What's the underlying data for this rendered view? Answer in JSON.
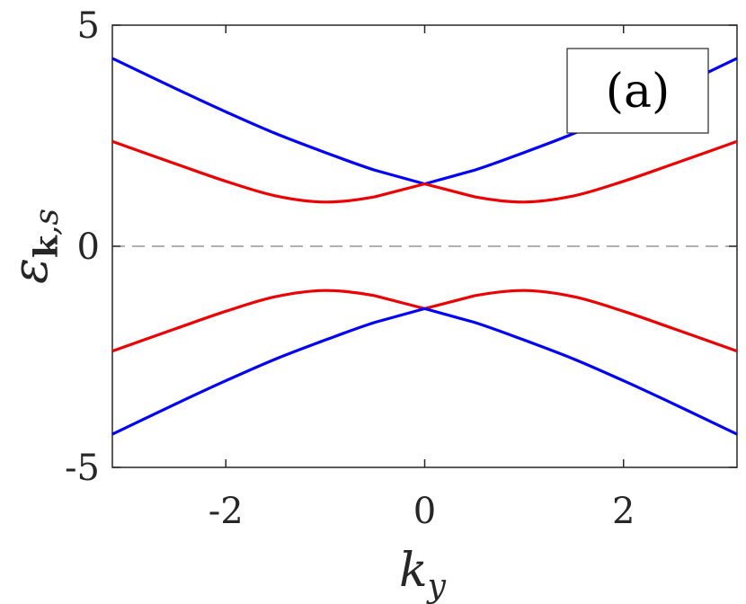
{
  "chart_data": {
    "type": "line",
    "title": "",
    "xlabel": "k_y",
    "ylabel": "ε_{k,s}",
    "xlim": [
      -3.1416,
      3.1416
    ],
    "ylim": [
      -5,
      5
    ],
    "xticks": [
      -2,
      0,
      2
    ],
    "xtick_labels": [
      "-2",
      "0",
      "2"
    ],
    "yticks": [
      -5,
      0,
      5
    ],
    "ytick_labels": [
      "-5",
      "0",
      "5"
    ],
    "grid": false,
    "panel_label": "(a)",
    "zero_line": {
      "y": 0,
      "style": "dashed",
      "color": "#808080"
    },
    "series": [
      {
        "color": "#0000ff",
        "x": [
          -3.1416,
          -2.5,
          -2.0,
          -1.5,
          -1.0,
          -0.5,
          0.0,
          0.5,
          1.0,
          1.5,
          2.0,
          2.5,
          3.1416
        ],
        "values": [
          4.25,
          3.56,
          3.04,
          2.55,
          2.12,
          1.72,
          1.41,
          1.72,
          2.12,
          2.55,
          3.04,
          3.56,
          4.25
        ]
      },
      {
        "color": "#ee0000",
        "x": [
          -3.1416,
          -2.5,
          -2.0,
          -1.5,
          -1.0,
          -0.5,
          0.0,
          0.5,
          1.0,
          1.5,
          2.0,
          2.5,
          3.1416
        ],
        "values": [
          2.37,
          1.86,
          1.47,
          1.14,
          1.0,
          1.12,
          1.41,
          1.12,
          1.0,
          1.14,
          1.47,
          1.86,
          2.37
        ]
      },
      {
        "color": "#ee0000",
        "x": [
          -3.1416,
          -2.5,
          -2.0,
          -1.5,
          -1.0,
          -0.5,
          0.0,
          0.5,
          1.0,
          1.5,
          2.0,
          2.5,
          3.1416
        ],
        "values": [
          -2.37,
          -1.86,
          -1.47,
          -1.14,
          -1.0,
          -1.12,
          -1.41,
          -1.12,
          -1.0,
          -1.14,
          -1.47,
          -1.86,
          -2.37
        ]
      },
      {
        "color": "#0000ff",
        "x": [
          -3.1416,
          -2.5,
          -2.0,
          -1.5,
          -1.0,
          -0.5,
          0.0,
          0.5,
          1.0,
          1.5,
          2.0,
          2.5,
          3.1416
        ],
        "values": [
          -4.25,
          -3.56,
          -3.04,
          -2.55,
          -2.12,
          -1.72,
          -1.41,
          -1.72,
          -2.12,
          -2.55,
          -3.04,
          -3.56,
          -4.25
        ]
      }
    ]
  }
}
